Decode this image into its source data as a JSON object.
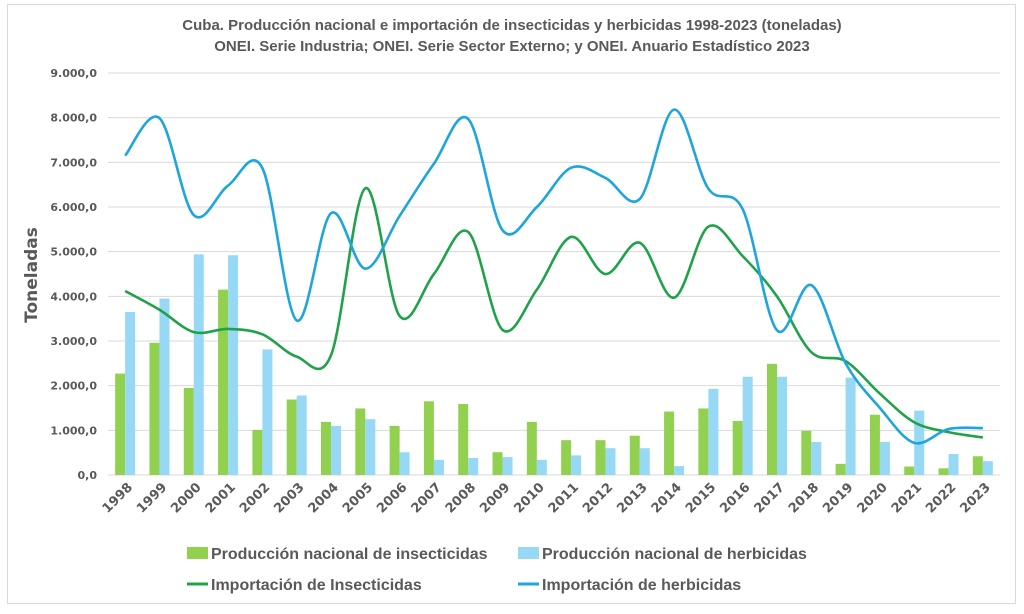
{
  "chart_data": {
    "type": "bar+line",
    "title": "Cuba. Producción nacional e importación de insecticidas y herbicidas 1998-2023 (toneladas)",
    "subtitle": "ONEI. Serie Industria; ONEI. Serie Sector Externo; y ONEI. Anuario Estadístico 2023",
    "xlabel": "",
    "ylabel": "Toneladas",
    "ylim": [
      0,
      9000
    ],
    "yticks": [
      0,
      1000,
      2000,
      3000,
      4000,
      5000,
      6000,
      7000,
      8000,
      9000
    ],
    "ytick_labels": [
      "0,0",
      "1.000,0",
      "2.000,0",
      "3.000,0",
      "4.000,0",
      "5.000,0",
      "6.000,0",
      "7.000,0",
      "8.000,0",
      "9.000,0"
    ],
    "grid": true,
    "legend_position": "bottom",
    "categories": [
      "1998",
      "1999",
      "2000",
      "2001",
      "2002",
      "2003",
      "2004",
      "2005",
      "2006",
      "2007",
      "2008",
      "2009",
      "2010",
      "2011",
      "2012",
      "2013",
      "2014",
      "2015",
      "2016",
      "2017",
      "2018",
      "2019",
      "2020",
      "2021",
      "2022",
      "2023"
    ],
    "series": [
      {
        "name": "Producción nacional de insecticidas",
        "type": "bar",
        "color": "#92d050",
        "values": [
          2270,
          2960,
          1950,
          4150,
          1010,
          1690,
          1190,
          1490,
          1100,
          1650,
          1590,
          510,
          1190,
          780,
          780,
          880,
          1420,
          1490,
          1210,
          2490,
          990,
          250,
          1350,
          190,
          150,
          420
        ]
      },
      {
        "name": "Producción nacional de herbicidas",
        "type": "bar",
        "color": "#97d9f5",
        "values": [
          3650,
          3950,
          4940,
          4920,
          2810,
          1780,
          1100,
          1250,
          510,
          340,
          380,
          400,
          340,
          440,
          600,
          600,
          200,
          1930,
          2200,
          2200,
          740,
          2180,
          740,
          1440,
          470,
          310
        ]
      },
      {
        "name": "Importación de Insecticidas",
        "type": "line",
        "smooth": true,
        "color": "#1fa24a",
        "values": [
          4120,
          3700,
          3200,
          3270,
          3150,
          2650,
          2680,
          6420,
          3560,
          4500,
          5440,
          3250,
          4150,
          5330,
          4500,
          5200,
          3970,
          5560,
          4900,
          4000,
          2750,
          2550,
          1820,
          1180,
          960,
          840
        ]
      },
      {
        "name": "Importación de herbicidas",
        "type": "line",
        "smooth": true,
        "color": "#1ea5dc",
        "values": [
          7150,
          7990,
          5820,
          6480,
          6870,
          3460,
          5860,
          4620,
          5800,
          6970,
          7970,
          5480,
          6000,
          6880,
          6650,
          6180,
          8180,
          6410,
          5950,
          3240,
          4250,
          2500,
          1500,
          720,
          1030,
          1050
        ]
      }
    ]
  }
}
